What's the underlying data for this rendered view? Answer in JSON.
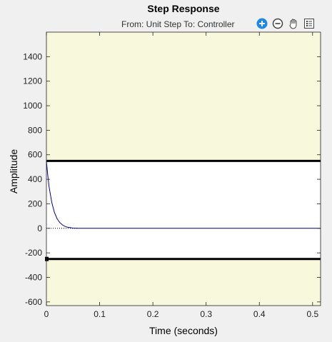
{
  "window": {
    "title": "Step Response",
    "subtitle": "From: Unit Step  To: Controller"
  },
  "toolbar": {
    "buttons": [
      {
        "icon": "zoom-in-icon",
        "active": true
      },
      {
        "icon": "zoom-out-icon"
      },
      {
        "icon": "pan-hand-icon"
      },
      {
        "icon": "data-cursor-icon"
      }
    ]
  },
  "chart_data": {
    "type": "line",
    "title": "Step Response",
    "xlabel": "Time (seconds)",
    "ylabel": "Amplitude",
    "xlim": [
      0,
      0.515
    ],
    "ylim": [
      -630,
      1600
    ],
    "x_ticks": [
      0,
      0.1,
      0.2,
      0.3,
      0.4,
      0.5
    ],
    "x_tick_labels": [
      "0",
      "0.1",
      "0.2",
      "0.3",
      "0.4",
      "0.5"
    ],
    "y_ticks": [
      -600,
      -400,
      -200,
      0,
      200,
      400,
      600,
      800,
      1000,
      1200,
      1400
    ],
    "y_tick_labels": [
      "-600",
      "-400",
      "-200",
      "0",
      "200",
      "400",
      "600",
      "800",
      "1000",
      "1200",
      "1400"
    ],
    "upper_bound": 550,
    "lower_bound": -250,
    "series": [
      {
        "color": "#00008b",
        "x": [
          0,
          0.002,
          0.005,
          0.01,
          0.015,
          0.02,
          0.025,
          0.03,
          0.035,
          0.04,
          0.045,
          0.05,
          0.06,
          0.1,
          0.2,
          0.3,
          0.4,
          0.515
        ],
        "y": [
          550,
          455,
          340,
          212,
          130,
          80,
          48,
          28,
          16,
          9,
          5,
          2,
          0,
          0,
          0,
          0,
          0,
          0
        ]
      }
    ],
    "final_value": 0,
    "colors": {
      "violation_region": "#f8f9dc",
      "allowed_region": "#ffffff",
      "bound_line": "#000000",
      "response_line": "#00008b"
    }
  }
}
